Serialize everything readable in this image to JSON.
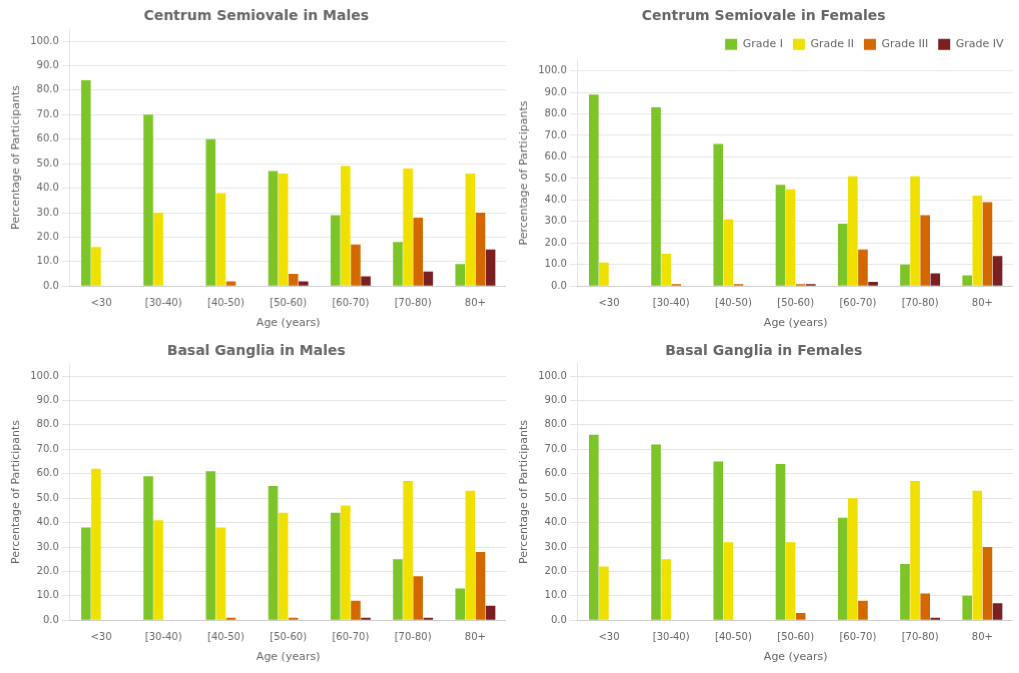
{
  "chart_data": [
    {
      "type": "bar",
      "title": "Centrum Semiovale in Males",
      "categories": [
        "<30",
        "[30-40)",
        "[40-50)",
        "[50-60)",
        "[60-70)",
        "[70-80)",
        "80+"
      ],
      "series": [
        {
          "name": "Grade I",
          "color": "#7cc427",
          "values": [
            84,
            70,
            60,
            47,
            29,
            18,
            9
          ]
        },
        {
          "name": "Grade II",
          "color": "#f0e000",
          "values": [
            16,
            30,
            38,
            46,
            49,
            48,
            46
          ]
        },
        {
          "name": "Grade III",
          "color": "#d46800",
          "values": [
            0,
            0,
            2,
            5,
            17,
            28,
            30
          ]
        },
        {
          "name": "Grade IV",
          "color": "#7a2020",
          "values": [
            0,
            0,
            0,
            2,
            4,
            6,
            15
          ]
        }
      ],
      "xlabel": "Age (years)",
      "ylabel": "Percentage of Participants",
      "ylim": [
        0,
        105
      ],
      "yticks": [
        {
          "value": 0,
          "label": "0.0"
        },
        {
          "value": 10,
          "label": "10.0"
        },
        {
          "value": 20,
          "label": "20.0"
        },
        {
          "value": 30,
          "label": "30.0"
        },
        {
          "value": 40,
          "label": "40.0"
        },
        {
          "value": 50,
          "label": "50.0"
        },
        {
          "value": 60,
          "label": "60.0"
        },
        {
          "value": 70,
          "label": "70.0"
        },
        {
          "value": 80,
          "label": "80.0"
        },
        {
          "value": 90,
          "label": "90.0"
        },
        {
          "value": 100,
          "label": "100.0"
        }
      ],
      "grid": true
    },
    {
      "type": "bar",
      "title": "Centrum Semiovale in Females",
      "categories": [
        "<30",
        "[30-40)",
        "[40-50)",
        "[50-60)",
        "[60-70)",
        "[70-80)",
        "80+"
      ],
      "series": [
        {
          "name": "Grade I",
          "color": "#7cc427",
          "values": [
            89,
            83,
            66,
            47,
            29,
            10,
            5
          ]
        },
        {
          "name": "Grade II",
          "color": "#f0e000",
          "values": [
            11,
            15,
            31,
            45,
            51,
            51,
            42
          ]
        },
        {
          "name": "Grade III",
          "color": "#d46800",
          "values": [
            0,
            1,
            1,
            1,
            17,
            33,
            39
          ]
        },
        {
          "name": "Grade IV",
          "color": "#7a2020",
          "values": [
            0,
            0,
            0,
            1,
            2,
            6,
            14
          ]
        }
      ],
      "xlabel": "Age (years)",
      "ylabel": "Percentage of Participants",
      "ylim": [
        0,
        105
      ],
      "yticks": [
        {
          "value": 0,
          "label": "0.0"
        },
        {
          "value": 10,
          "label": "10.0"
        },
        {
          "value": 20,
          "label": "20.0"
        },
        {
          "value": 30,
          "label": "30.0"
        },
        {
          "value": 40,
          "label": "40.0"
        },
        {
          "value": 50,
          "label": "50.0"
        },
        {
          "value": 60,
          "label": "60.0"
        },
        {
          "value": 70,
          "label": "70.0"
        },
        {
          "value": 80,
          "label": "80.0"
        },
        {
          "value": 90,
          "label": "90.0"
        },
        {
          "value": 100,
          "label": "100.0"
        }
      ],
      "grid": true,
      "legend": "upper right"
    },
    {
      "type": "bar",
      "title": "Basal Ganglia in Males",
      "categories": [
        "<30",
        "[30-40)",
        "[40-50)",
        "[50-60)",
        "[60-70)",
        "[70-80)",
        "80+"
      ],
      "series": [
        {
          "name": "Grade I",
          "color": "#7cc427",
          "values": [
            38,
            59,
            61,
            55,
            44,
            25,
            13
          ]
        },
        {
          "name": "Grade II",
          "color": "#f0e000",
          "values": [
            62,
            41,
            38,
            44,
            47,
            57,
            53
          ]
        },
        {
          "name": "Grade III",
          "color": "#d46800",
          "values": [
            0,
            0,
            1,
            1,
            8,
            18,
            28
          ]
        },
        {
          "name": "Grade IV",
          "color": "#7a2020",
          "values": [
            0,
            0,
            0,
            0,
            1,
            1,
            6
          ]
        }
      ],
      "xlabel": "Age (years)",
      "ylabel": "Percentage of Participants",
      "ylim": [
        0,
        105
      ],
      "yticks": [
        {
          "value": 0,
          "label": "0.0"
        },
        {
          "value": 10,
          "label": "10.0"
        },
        {
          "value": 20,
          "label": "20.0"
        },
        {
          "value": 30,
          "label": "30.0"
        },
        {
          "value": 40,
          "label": "40.0"
        },
        {
          "value": 50,
          "label": "50.0"
        },
        {
          "value": 60,
          "label": "60.0"
        },
        {
          "value": 70,
          "label": "70.0"
        },
        {
          "value": 80,
          "label": "80.0"
        },
        {
          "value": 90,
          "label": "90.0"
        },
        {
          "value": 100,
          "label": "100.0"
        }
      ],
      "grid": true
    },
    {
      "type": "bar",
      "title": "Basal Ganglia in Females",
      "categories": [
        "<30",
        "[30-40)",
        "[40-50)",
        "[50-60)",
        "[60-70)",
        "[70-80)",
        "80+"
      ],
      "series": [
        {
          "name": "Grade I",
          "color": "#7cc427",
          "values": [
            76,
            72,
            65,
            64,
            42,
            23,
            10
          ]
        },
        {
          "name": "Grade II",
          "color": "#f0e000",
          "values": [
            22,
            25,
            32,
            32,
            50,
            57,
            53
          ]
        },
        {
          "name": "Grade III",
          "color": "#d46800",
          "values": [
            0,
            0,
            0,
            3,
            8,
            11,
            30
          ]
        },
        {
          "name": "Grade IV",
          "color": "#7a2020",
          "values": [
            0,
            0,
            0,
            0,
            0,
            1,
            7
          ]
        }
      ],
      "xlabel": "Age (years)",
      "ylabel": "Percentage of Participants",
      "ylim": [
        0,
        105
      ],
      "yticks": [
        {
          "value": 0,
          "label": "0.0"
        },
        {
          "value": 10,
          "label": "10.0"
        },
        {
          "value": 20,
          "label": "20.0"
        },
        {
          "value": 30,
          "label": "30.0"
        },
        {
          "value": 40,
          "label": "40.0"
        },
        {
          "value": 50,
          "label": "50.0"
        },
        {
          "value": 60,
          "label": "60.0"
        },
        {
          "value": 70,
          "label": "70.0"
        },
        {
          "value": 80,
          "label": "80.0"
        },
        {
          "value": 90,
          "label": "90.0"
        },
        {
          "value": 100,
          "label": "100.0"
        }
      ],
      "grid": true
    }
  ]
}
